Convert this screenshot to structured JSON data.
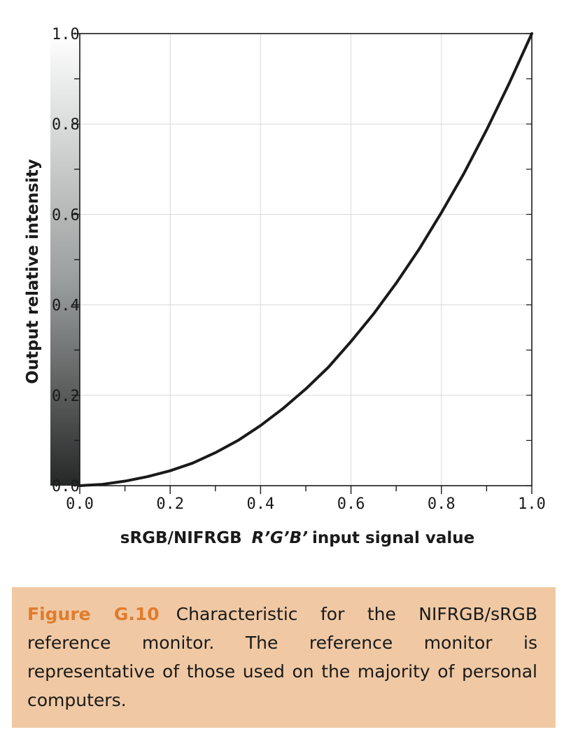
{
  "chart_data": {
    "type": "line",
    "xlabel_prefix": "sRGB/NIFRGB",
    "xlabel_italic": "R’G’B’",
    "xlabel_suffix": "input signal value",
    "ylabel": "Output relative intensity",
    "xlim": [
      0,
      1
    ],
    "ylim": [
      0,
      1
    ],
    "x_ticks": [
      "0.0",
      "0.2",
      "0.4",
      "0.6",
      "0.8",
      "1.0"
    ],
    "y_ticks": [
      "0.0",
      "0.2",
      "0.4",
      "0.6",
      "0.8",
      "1.0"
    ],
    "grid": true,
    "legend": "none",
    "series": [
      {
        "x": [
          0.0,
          0.05,
          0.1,
          0.15,
          0.2,
          0.25,
          0.3,
          0.35,
          0.4,
          0.45,
          0.5,
          0.55,
          0.6,
          0.65,
          0.7,
          0.75,
          0.8,
          0.85,
          0.9,
          0.95,
          1.0
        ],
        "y": [
          0.0,
          0.003,
          0.01,
          0.02,
          0.033,
          0.05,
          0.073,
          0.1,
          0.133,
          0.171,
          0.214,
          0.262,
          0.319,
          0.38,
          0.448,
          0.522,
          0.604,
          0.691,
          0.787,
          0.89,
          1.0
        ]
      }
    ],
    "y_axis_gradient": {
      "top_color": "#ffffff",
      "bottom_color": "#252827"
    },
    "line_color": "#1a1a1a"
  },
  "caption": {
    "label": "Figure G.10",
    "text": "Characteristic for the NIFRGB/sRGB reference monitor. The reference monitor is representative of those used on the majority of personal computers."
  },
  "colors": {
    "caption_background": "#f0c9a4",
    "caption_label": "#e07c2e",
    "grid": "#d9d9d9"
  }
}
